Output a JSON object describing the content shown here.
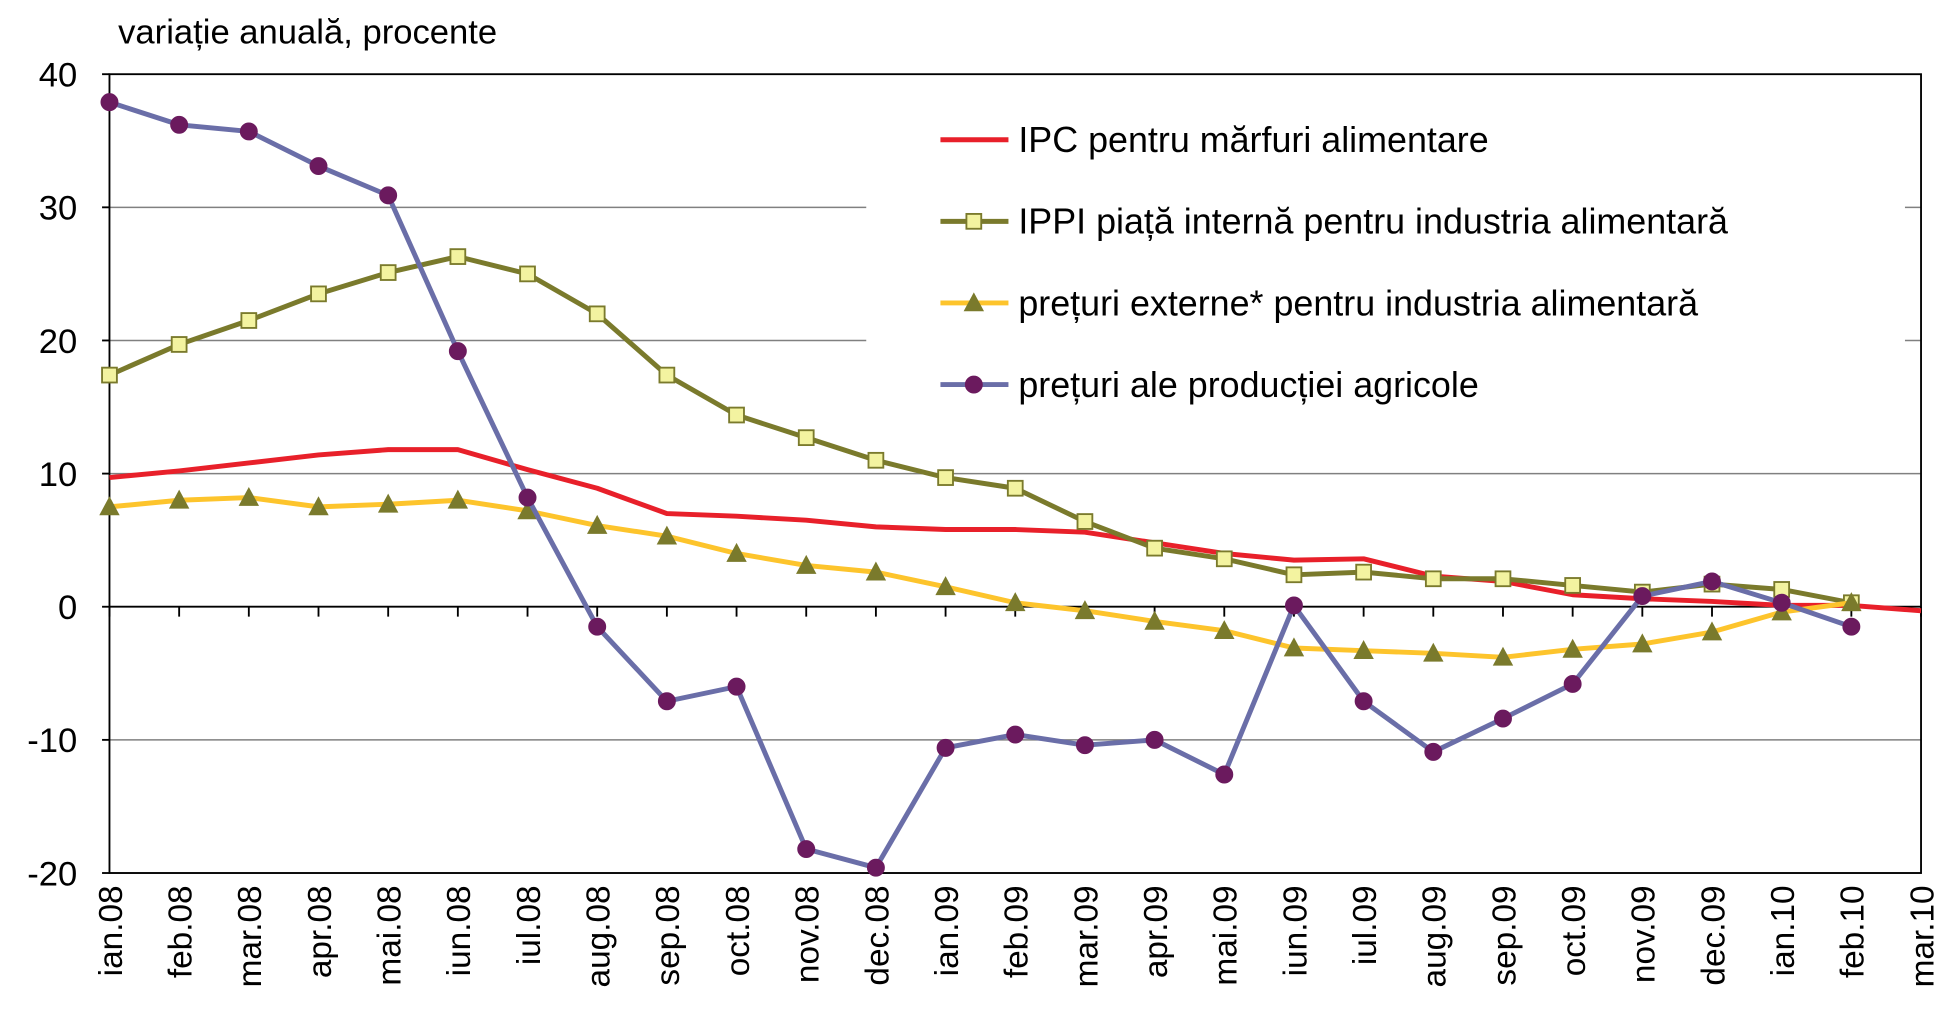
{
  "chart_data": {
    "type": "line",
    "y_label": "variație anuală, procente",
    "categories": [
      "ian.08",
      "feb.08",
      "mar.08",
      "apr.08",
      "mai.08",
      "iun.08",
      "iul.08",
      "aug.08",
      "sep.08",
      "oct.08",
      "nov.08",
      "dec.08",
      "ian.09",
      "feb.09",
      "mar.09",
      "apr.09",
      "mai.09",
      "iun.09",
      "iul.09",
      "aug.09",
      "sep.09",
      "oct.09",
      "nov.09",
      "dec.09",
      "ian.10",
      "feb.10",
      "mar.10"
    ],
    "series": [
      {
        "name": "IPC pentru mărfuri alimentare",
        "color": "#e8202a",
        "marker": "none",
        "values": [
          9.7,
          10.2,
          10.8,
          11.4,
          11.8,
          11.8,
          10.3,
          8.9,
          7.0,
          6.8,
          6.5,
          6.0,
          5.8,
          5.8,
          5.6,
          4.8,
          4.0,
          3.5,
          3.6,
          2.3,
          1.9,
          0.9,
          0.6,
          0.4,
          0.1,
          0.1,
          -0.3
        ]
      },
      {
        "name": "IPPI piață internă pentru industria alimentară",
        "color": "#7a7a2c",
        "marker": "square",
        "marker_color": "#f3f3a0",
        "values": [
          17.4,
          19.7,
          21.5,
          23.5,
          25.1,
          26.3,
          25.0,
          22.0,
          17.4,
          14.4,
          12.7,
          11.0,
          9.7,
          8.9,
          6.4,
          4.4,
          3.6,
          2.4,
          2.6,
          2.1,
          2.1,
          1.6,
          1.1,
          1.7,
          1.3,
          0.3,
          null
        ]
      },
      {
        "name": "prețuri externe* pentru industria alimentară",
        "color": "#fdc42c",
        "marker": "triangle",
        "marker_color": "#7a7a2c",
        "values": [
          7.5,
          8.0,
          8.2,
          7.5,
          7.7,
          8.0,
          7.2,
          6.1,
          5.3,
          4.0,
          3.1,
          2.6,
          1.5,
          0.3,
          -0.3,
          -1.1,
          -1.8,
          -3.1,
          -3.3,
          -3.5,
          -3.8,
          -3.2,
          -2.8,
          -1.9,
          -0.4,
          0.3,
          null
        ]
      },
      {
        "name": "prețuri ale producției agricole",
        "color": "#6a6ea8",
        "marker": "circle",
        "marker_color": "#6b1a5e",
        "values": [
          37.9,
          36.2,
          35.7,
          33.1,
          30.9,
          19.2,
          8.2,
          -1.5,
          -7.1,
          -6.0,
          -18.2,
          -19.6,
          -10.6,
          -9.6,
          -10.4,
          -10.0,
          -12.6,
          0.1,
          -7.1,
          -10.9,
          -8.4,
          -5.8,
          0.8,
          1.9,
          0.3,
          -1.5,
          null
        ]
      }
    ],
    "ylim": [
      -20,
      40
    ],
    "yticks": [
      -20,
      -10,
      0,
      10,
      20,
      30,
      40
    ],
    "grid": true,
    "legend": "top-right"
  }
}
